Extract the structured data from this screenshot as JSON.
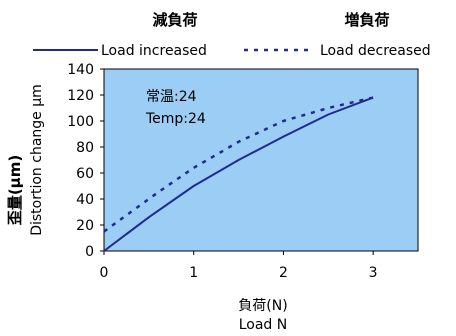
{
  "chart_data": {
    "type": "line",
    "header_labels": [
      "減負荷",
      "増負荷"
    ],
    "series": [
      {
        "name": "Load increased",
        "style": "solid",
        "color": "#1f2b8f",
        "points": [
          [
            0,
            0
          ],
          [
            0.5,
            26
          ],
          [
            1,
            50
          ],
          [
            1.5,
            70
          ],
          [
            2,
            88
          ],
          [
            2.5,
            105
          ],
          [
            3,
            118
          ]
        ]
      },
      {
        "name": "Load decreased",
        "style": "dotted",
        "color": "#1f2b8f",
        "points": [
          [
            0,
            15
          ],
          [
            0.3,
            30
          ],
          [
            0.6,
            45
          ],
          [
            1,
            64
          ],
          [
            1.5,
            84
          ],
          [
            2,
            100
          ],
          [
            2.5,
            110
          ],
          [
            3,
            118
          ]
        ]
      }
    ],
    "annotations": [
      "常温:24",
      "Temp:24"
    ],
    "xlabel": [
      "負荷(N)",
      "Load N"
    ],
    "ylabel": [
      "歪量(μm)",
      "Distortion change μm"
    ],
    "xlim": [
      0,
      3.5
    ],
    "ylim": [
      0,
      140
    ],
    "xticks": [
      0,
      1,
      2,
      3
    ],
    "yticks": [
      0,
      20,
      40,
      60,
      80,
      100,
      120,
      140
    ],
    "plot_background": "#9ccdf5",
    "grid": false
  }
}
